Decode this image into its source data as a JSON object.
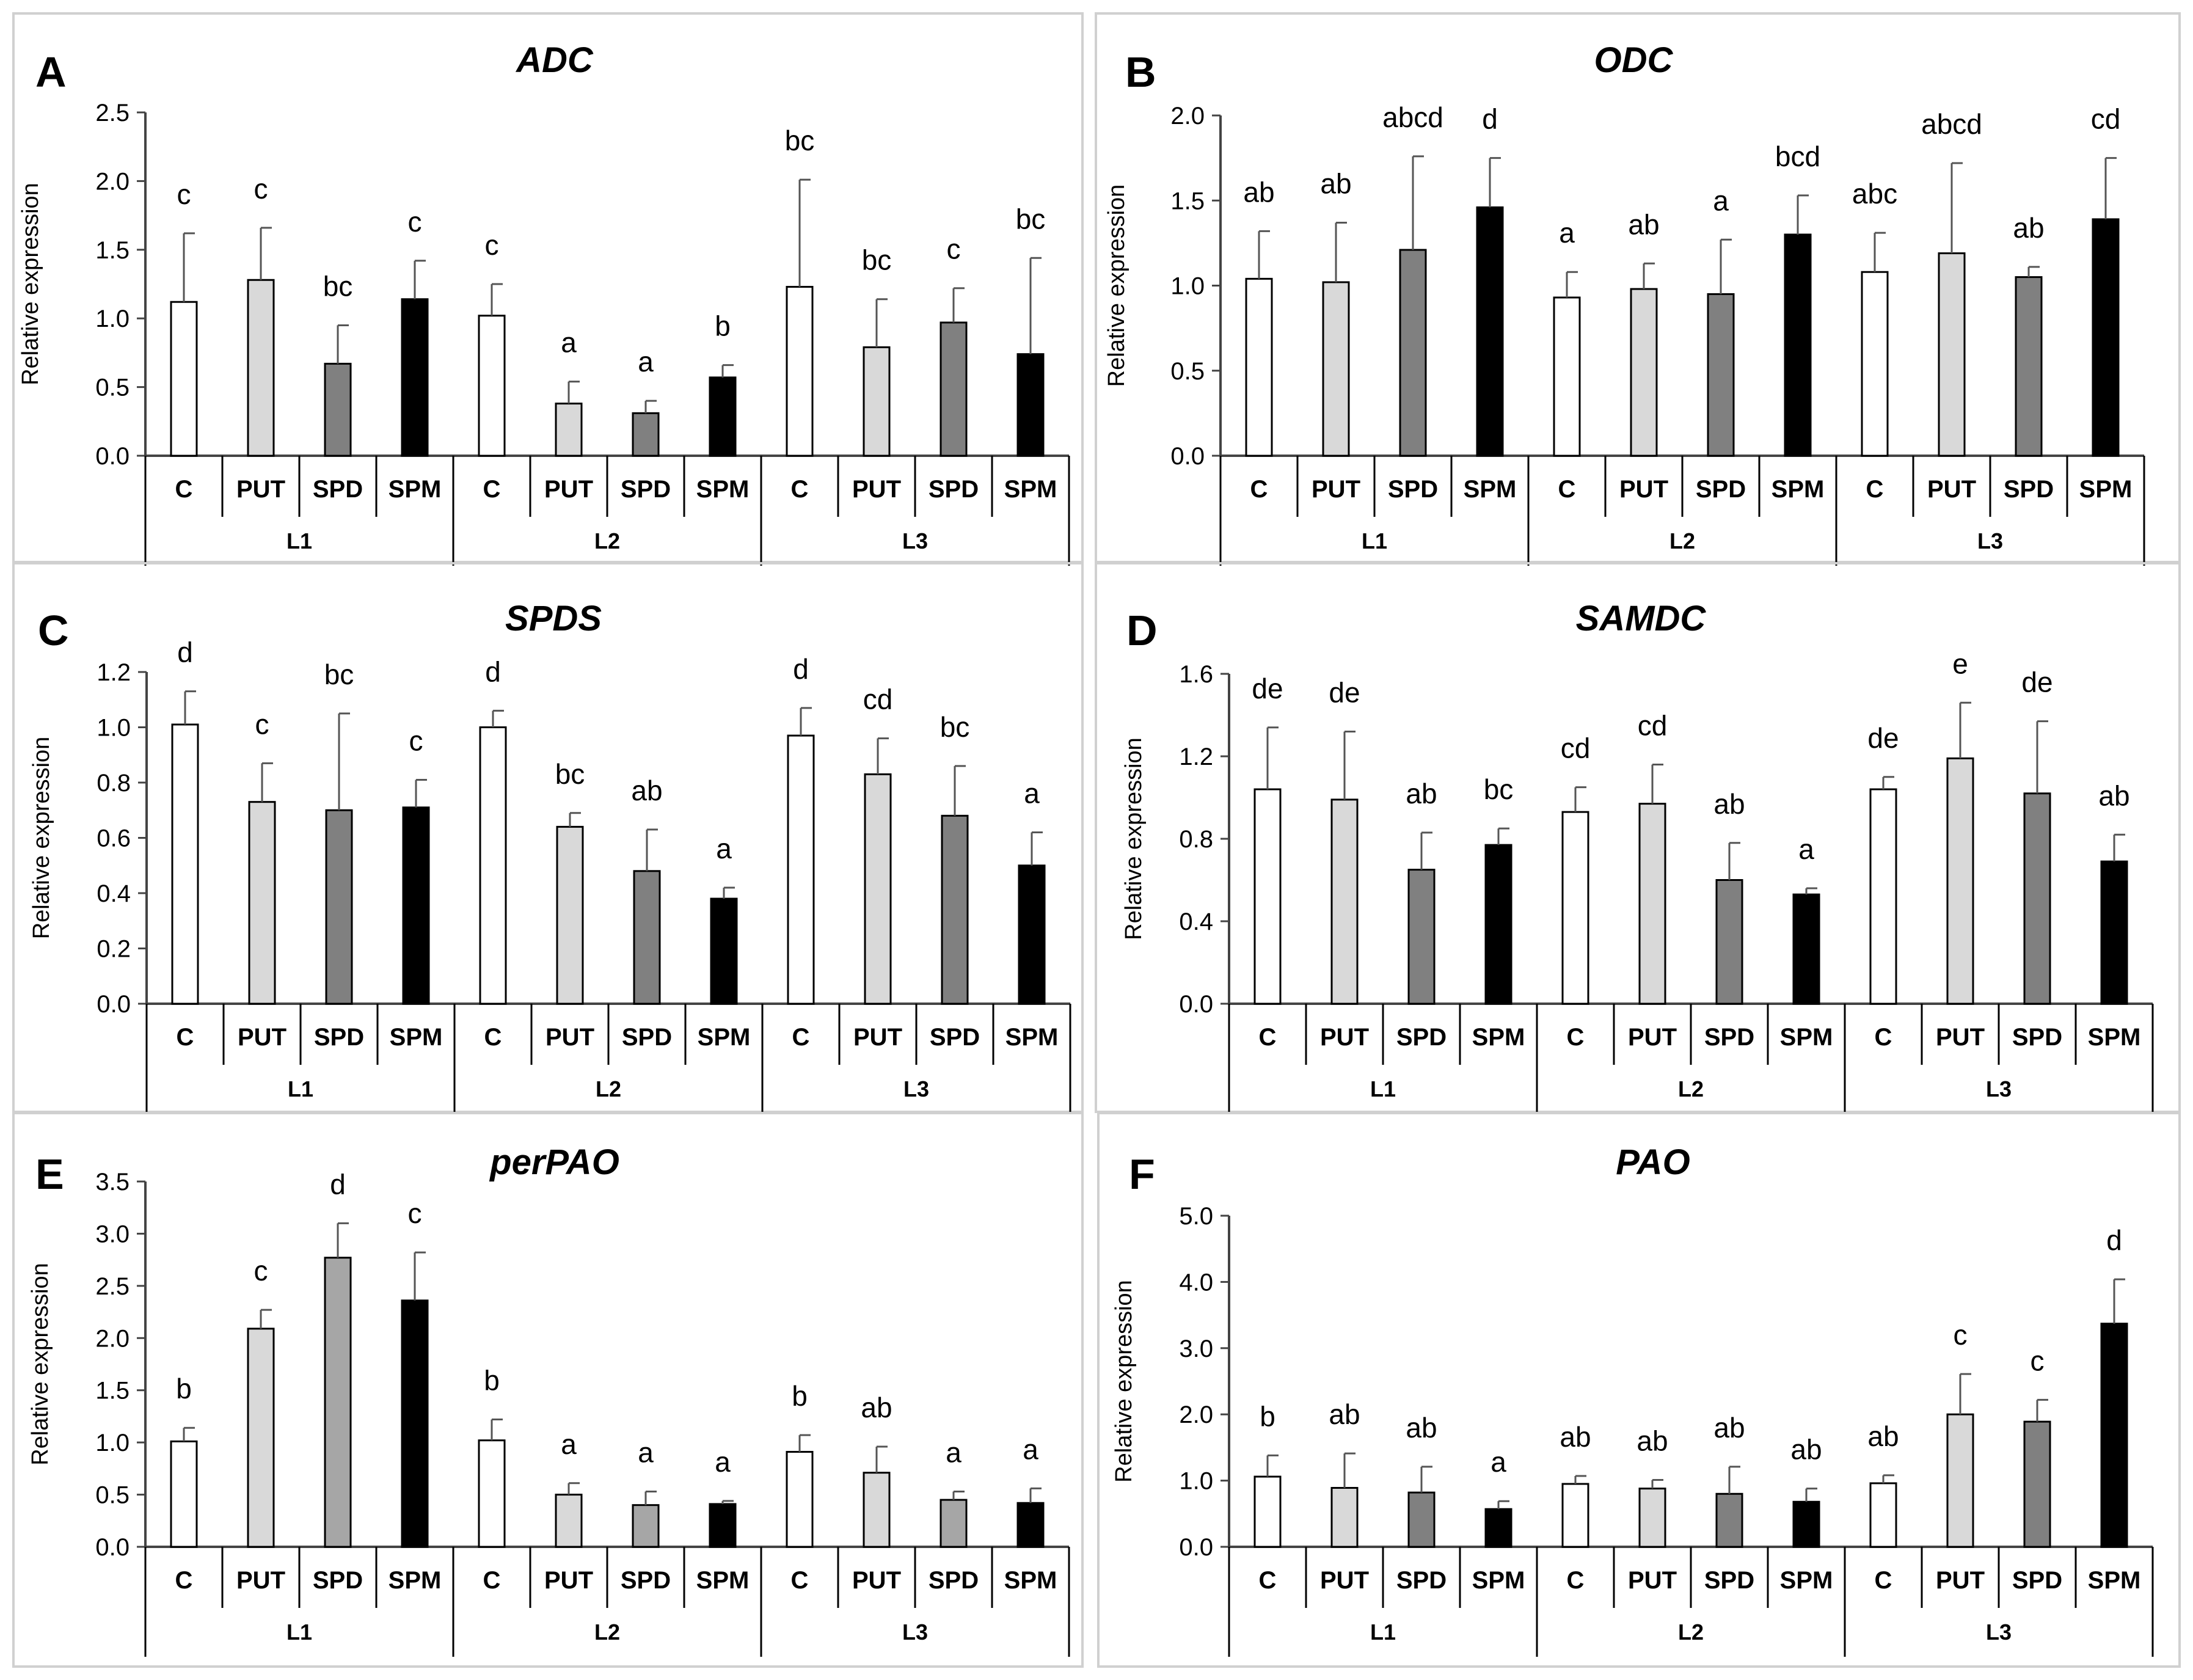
{
  "chart_data": [
    {
      "letter": "A",
      "title": "ADC",
      "type": "bar",
      "ylabel": "Relative expression",
      "ylim": [
        0,
        2.5
      ],
      "yticks": [
        "0.0",
        "0.5",
        "1.0",
        "1.5",
        "2.0",
        "2.5"
      ],
      "categories": [
        "C",
        "PUT",
        "SPD",
        "SPM",
        "C",
        "PUT",
        "SPD",
        "SPM",
        "C",
        "PUT",
        "SPD",
        "SPM"
      ],
      "groups": [
        "L1",
        "L2",
        "L3"
      ],
      "values": [
        1.12,
        1.28,
        0.67,
        1.14,
        1.02,
        0.38,
        0.31,
        0.57,
        1.23,
        0.79,
        0.97,
        0.74
      ],
      "errors": [
        0.5,
        0.38,
        0.28,
        0.28,
        0.23,
        0.16,
        0.09,
        0.09,
        0.78,
        0.35,
        0.25,
        0.7
      ],
      "significance": [
        "c",
        "c",
        "bc",
        "c",
        "c",
        "a",
        "a",
        "b",
        "bc",
        "bc",
        "c",
        "bc"
      ]
    },
    {
      "letter": "B",
      "title": "ODC",
      "type": "bar",
      "ylabel": "Relative expression",
      "ylim": [
        0,
        2.0
      ],
      "yticks": [
        "0.0",
        "0.5",
        "1.0",
        "1.5",
        "2.0"
      ],
      "categories": [
        "C",
        "PUT",
        "SPD",
        "SPM",
        "C",
        "PUT",
        "SPD",
        "SPM",
        "C",
        "PUT",
        "SPD",
        "SPM"
      ],
      "groups": [
        "L1",
        "L2",
        "L3"
      ],
      "values": [
        1.04,
        1.02,
        1.21,
        1.46,
        0.93,
        0.98,
        0.95,
        1.3,
        1.08,
        1.19,
        1.05,
        1.39
      ],
      "errors": [
        0.28,
        0.35,
        0.55,
        0.29,
        0.15,
        0.15,
        0.32,
        0.23,
        0.23,
        0.53,
        0.06,
        0.36
      ],
      "significance": [
        "ab",
        "ab",
        "abcd",
        "d",
        "a",
        "ab",
        "a",
        "bcd",
        "abc",
        "abcd",
        "ab",
        "cd"
      ]
    },
    {
      "letter": "C",
      "title": "SPDS",
      "type": "bar",
      "ylabel": "Relative expression",
      "ylim": [
        0,
        1.2
      ],
      "yticks": [
        "0.0",
        "0.2",
        "0.4",
        "0.6",
        "0.8",
        "1.0",
        "1.2"
      ],
      "categories": [
        "C",
        "PUT",
        "SPD",
        "SPM",
        "C",
        "PUT",
        "SPD",
        "SPM",
        "C",
        "PUT",
        "SPD",
        "SPM"
      ],
      "groups": [
        "L1",
        "L2",
        "L3"
      ],
      "values": [
        1.01,
        0.73,
        0.7,
        0.71,
        1.0,
        0.64,
        0.48,
        0.38,
        0.97,
        0.83,
        0.68,
        0.5
      ],
      "errors": [
        0.12,
        0.14,
        0.35,
        0.1,
        0.06,
        0.05,
        0.15,
        0.04,
        0.1,
        0.13,
        0.18,
        0.12
      ],
      "significance": [
        "d",
        "c",
        "bc",
        "c",
        "d",
        "bc",
        "ab",
        "a",
        "d",
        "cd",
        "bc",
        "a"
      ]
    },
    {
      "letter": "D",
      "title": "SAMDC",
      "type": "bar",
      "ylabel": "Relative expression",
      "ylim": [
        0,
        1.6
      ],
      "yticks": [
        "0.0",
        "0.4",
        "0.8",
        "1.2",
        "1.6"
      ],
      "categories": [
        "C",
        "PUT",
        "SPD",
        "SPM",
        "C",
        "PUT",
        "SPD",
        "SPM",
        "C",
        "PUT",
        "SPD",
        "SPM"
      ],
      "groups": [
        "L1",
        "L2",
        "L3"
      ],
      "values": [
        1.04,
        0.99,
        0.65,
        0.77,
        0.93,
        0.97,
        0.6,
        0.53,
        1.04,
        1.19,
        1.02,
        0.69
      ],
      "errors": [
        0.3,
        0.33,
        0.18,
        0.08,
        0.12,
        0.19,
        0.18,
        0.03,
        0.06,
        0.27,
        0.35,
        0.13
      ],
      "significance": [
        "de",
        "de",
        "ab",
        "bc",
        "cd",
        "cd",
        "ab",
        "a",
        "de",
        "e",
        "de",
        "ab"
      ]
    },
    {
      "letter": "E",
      "title": "perPAO",
      "type": "bar",
      "ylabel": "Relative expression",
      "ylim": [
        0,
        3.5
      ],
      "yticks": [
        "0.0",
        "0.5",
        "1.0",
        "1.5",
        "2.0",
        "2.5",
        "3.0",
        "3.5"
      ],
      "categories": [
        "C",
        "PUT",
        "SPD",
        "SPM",
        "C",
        "PUT",
        "SPD",
        "SPM",
        "C",
        "PUT",
        "SPD",
        "SPM"
      ],
      "groups": [
        "L1",
        "L2",
        "L3"
      ],
      "values": [
        1.01,
        2.09,
        2.77,
        2.36,
        1.02,
        0.5,
        0.4,
        0.41,
        0.91,
        0.71,
        0.45,
        0.42
      ],
      "errors": [
        0.13,
        0.18,
        0.33,
        0.46,
        0.2,
        0.11,
        0.13,
        0.03,
        0.16,
        0.25,
        0.08,
        0.14
      ],
      "significance": [
        "b",
        "c",
        "d",
        "c",
        "b",
        "a",
        "a",
        "a",
        "b",
        "ab",
        "a",
        "a"
      ]
    },
    {
      "letter": "F",
      "title": "PAO",
      "type": "bar",
      "ylabel": "Relative expression",
      "ylim": [
        0,
        5.0
      ],
      "yticks": [
        "0.0",
        "1.0",
        "2.0",
        "3.0",
        "4.0",
        "5.0"
      ],
      "categories": [
        "C",
        "PUT",
        "SPD",
        "SPM",
        "C",
        "PUT",
        "SPD",
        "SPM",
        "C",
        "PUT",
        "SPD",
        "SPM"
      ],
      "groups": [
        "L1",
        "L2",
        "L3"
      ],
      "values": [
        1.06,
        0.89,
        0.82,
        0.57,
        0.95,
        0.88,
        0.8,
        0.68,
        0.96,
        2.0,
        1.89,
        3.37
      ],
      "errors": [
        0.32,
        0.52,
        0.39,
        0.12,
        0.12,
        0.13,
        0.41,
        0.2,
        0.12,
        0.61,
        0.33,
        0.67
      ],
      "significance": [
        "b",
        "ab",
        "ab",
        "a",
        "ab",
        "ab",
        "ab",
        "ab",
        "ab",
        "c",
        "c",
        "d"
      ]
    }
  ],
  "colors": {
    "C": "#ffffff",
    "PUT": "#d9d9d9",
    "SPD": "#808080",
    "SPM": "#000000",
    "SPD_E": "#a6a6a6"
  }
}
